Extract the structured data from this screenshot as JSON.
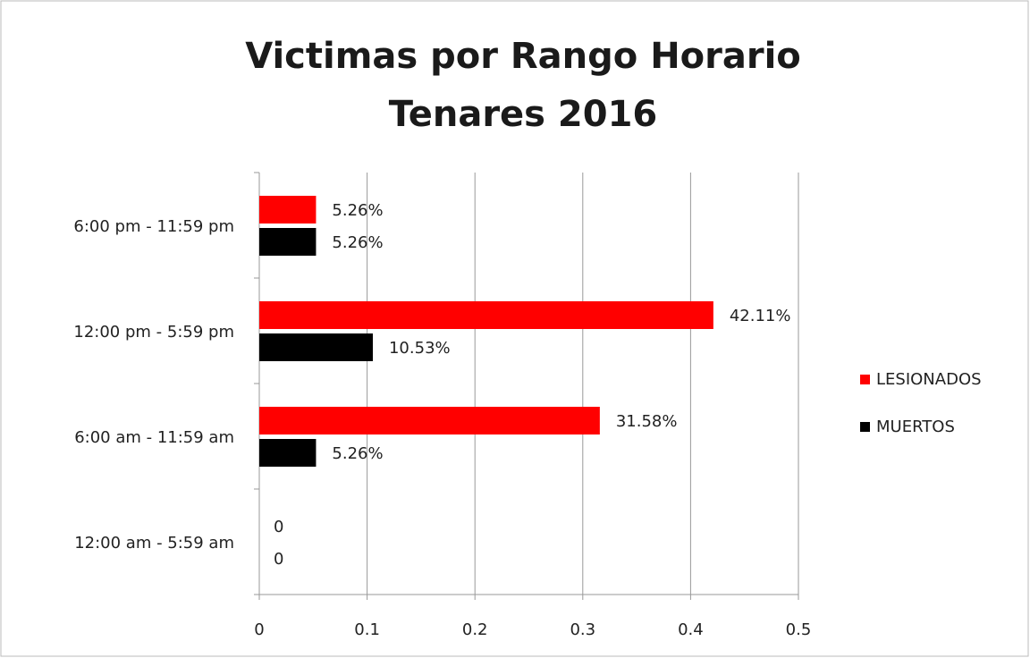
{
  "chart_data": {
    "type": "barh",
    "title": "Victimas por Rango Horario",
    "subtitle": "Tenares 2016",
    "categories": [
      "12:00 am - 5:59 am",
      "6:00 am - 11:59 am",
      "12:00 pm - 5:59 pm",
      "6:00 pm - 11:59 pm"
    ],
    "series": [
      {
        "name": "LESIONADOS",
        "color": "#ff0000",
        "values": [
          0,
          0.3158,
          0.4211,
          0.0526
        ],
        "value_labels": [
          "0",
          "31.58%",
          "42.11%",
          "5.26%"
        ]
      },
      {
        "name": "MUERTOS",
        "color": "#000000",
        "values": [
          0,
          0.0526,
          0.1053,
          0.0526
        ],
        "value_labels": [
          "0",
          "5.26%",
          "10.53%",
          "5.26%"
        ]
      }
    ],
    "xlim": [
      0,
      0.5
    ],
    "xticks": [
      0,
      0.1,
      0.2,
      0.3,
      0.4,
      0.5
    ],
    "grid": true,
    "legend": "right"
  }
}
